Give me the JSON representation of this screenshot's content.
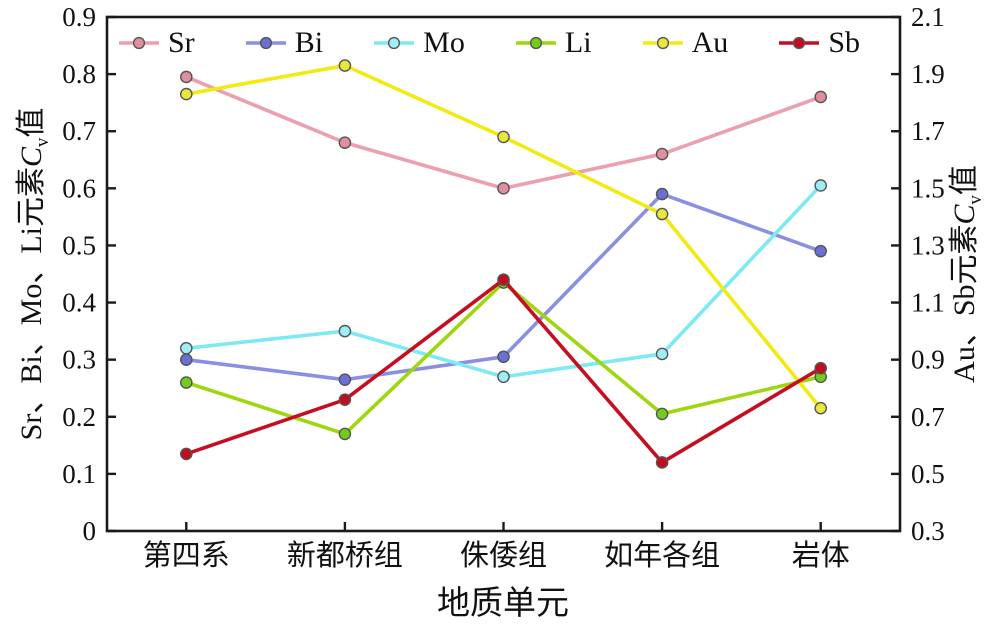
{
  "figure": {
    "axes": {
      "left_title": {
        "pre": "Sr、Bi、Mo、Li元素",
        "cvar": "C",
        "sub": "v",
        "suf": "值"
      },
      "right_title": {
        "pre": "Au、Sb元素",
        "cvar": "C",
        "sub": "v",
        "suf": "值"
      },
      "x_title": "地质单元"
    },
    "frame_color": "#1a1a1a",
    "marker_outline_color": "#555555"
  },
  "chart_data": {
    "type": "line",
    "title": "",
    "xlabel": "地质单元",
    "ylabel_left": "Sr、Bi、Mo、Li元素Cv值",
    "ylabel_right": "Au、Sb元素Cv值",
    "categories": [
      "第四系",
      "新都桥组",
      "侏倭组",
      "如年各组",
      "岩体"
    ],
    "left_axis_range": [
      0,
      0.9
    ],
    "right_axis_range": [
      0.3,
      2.1
    ],
    "left_ticks": [
      "0",
      "0.1",
      "0.2",
      "0.3",
      "0.4",
      "0.5",
      "0.6",
      "0.7",
      "0.8",
      "0.9"
    ],
    "right_ticks": [
      "0.3",
      "0.5",
      "0.7",
      "0.9",
      "1.1",
      "1.3",
      "1.5",
      "1.7",
      "1.9",
      "2.1"
    ],
    "grid": false,
    "legend_position": "top-inside",
    "series": [
      {
        "name": "Sr",
        "axis": "left",
        "line_color": "#ec9fae",
        "marker_color": "#e08f9f",
        "values": [
          0.795,
          0.68,
          0.6,
          0.66,
          0.76
        ]
      },
      {
        "name": "Bi",
        "axis": "left",
        "line_color": "#8a8fe2",
        "marker_color": "#6b70d6",
        "values": [
          0.3,
          0.265,
          0.305,
          0.59,
          0.49
        ]
      },
      {
        "name": "Mo",
        "axis": "left",
        "line_color": "#7de9f2",
        "marker_color": "#9feef6",
        "values": [
          0.32,
          0.35,
          0.27,
          0.31,
          0.605
        ]
      },
      {
        "name": "Li",
        "axis": "left",
        "line_color": "#9ed60f",
        "marker_color": "#72cc1c",
        "values": [
          0.26,
          0.17,
          0.435,
          0.205,
          0.27
        ]
      },
      {
        "name": "Au",
        "axis": "right",
        "line_color": "#f2ea10",
        "marker_color": "#e9e63c",
        "values": [
          1.83,
          1.93,
          1.68,
          1.41,
          0.73
        ]
      },
      {
        "name": "Sb",
        "axis": "right",
        "line_color": "#c60e20",
        "marker_color": "#c10d1d",
        "values": [
          0.57,
          0.76,
          1.18,
          0.54,
          0.87
        ]
      }
    ]
  }
}
